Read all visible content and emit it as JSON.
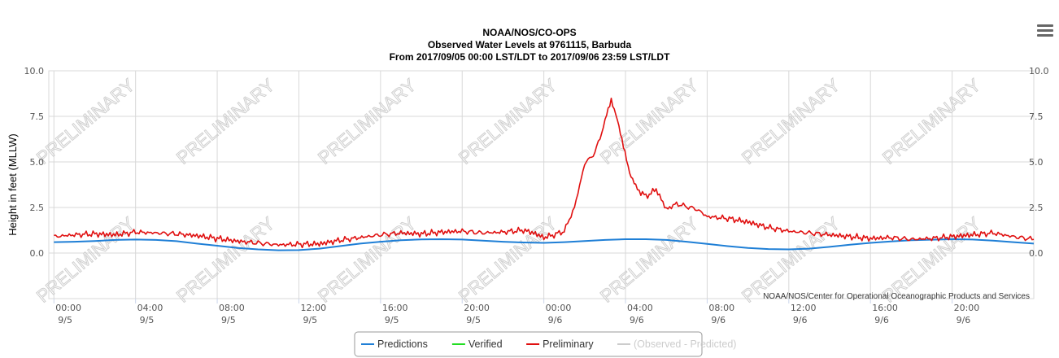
{
  "chart_data": {
    "type": "line",
    "title_lines": [
      "NOAA/NOS/CO-OPS",
      "Observed Water Levels at 9761115, Barbuda",
      "From 2017/09/05 00:00 LST/LDT to 2017/09/06 23:59 LST/LDT"
    ],
    "ylabel": "Height in feet (MLLW)",
    "xlabel": "",
    "ylim": [
      -2.5,
      10.0
    ],
    "y_ticks": [
      "10.0",
      "7.5",
      "5.0",
      "2.5",
      "0.0"
    ],
    "y_tick_values": [
      10.0,
      7.5,
      5.0,
      2.5,
      0.0
    ],
    "xlim_hours": [
      -0.25,
      48.0
    ],
    "x_ticks": [
      {
        "time": "00:00",
        "date": "9/5"
      },
      {
        "time": "04:00",
        "date": "9/5"
      },
      {
        "time": "08:00",
        "date": "9/5"
      },
      {
        "time": "12:00",
        "date": "9/5"
      },
      {
        "time": "16:00",
        "date": "9/5"
      },
      {
        "time": "20:00",
        "date": "9/5"
      },
      {
        "time": "00:00",
        "date": "9/6"
      },
      {
        "time": "04:00",
        "date": "9/6"
      },
      {
        "time": "08:00",
        "date": "9/6"
      },
      {
        "time": "12:00",
        "date": "9/6"
      },
      {
        "time": "16:00",
        "date": "9/6"
      },
      {
        "time": "20:00",
        "date": "9/6"
      }
    ],
    "grid": true,
    "watermark": "PRELIMINARY",
    "credit": "NOAA/NOS/Center for Operational Oceanographic Products and Services",
    "legend_position": "bottom-center",
    "series": [
      {
        "name": "Predictions",
        "color": "#1f7fd6",
        "x": [
          0,
          1,
          2,
          3,
          4,
          5,
          6,
          7,
          8,
          9,
          10,
          11,
          12,
          13,
          14,
          15,
          16,
          17,
          18,
          19,
          20,
          21,
          22,
          23,
          24,
          25,
          26,
          27,
          28,
          29,
          30,
          31,
          32,
          33,
          34,
          35,
          36,
          37,
          38,
          39,
          40,
          41,
          42,
          43,
          44,
          45,
          46,
          47,
          48
        ],
        "y": [
          0.6,
          0.62,
          0.66,
          0.72,
          0.74,
          0.72,
          0.65,
          0.52,
          0.4,
          0.28,
          0.2,
          0.15,
          0.16,
          0.24,
          0.38,
          0.52,
          0.62,
          0.7,
          0.75,
          0.76,
          0.74,
          0.68,
          0.62,
          0.58,
          0.56,
          0.6,
          0.66,
          0.72,
          0.76,
          0.76,
          0.72,
          0.62,
          0.5,
          0.38,
          0.28,
          0.22,
          0.2,
          0.24,
          0.34,
          0.46,
          0.56,
          0.64,
          0.7,
          0.73,
          0.76,
          0.74,
          0.68,
          0.6,
          0.52
        ]
      },
      {
        "name": "Verified",
        "color": "#22dd22",
        "x": [],
        "y": []
      },
      {
        "name": "Preliminary",
        "color": "#e01010",
        "x": [
          0,
          1,
          2,
          3,
          4,
          5,
          6,
          7,
          8,
          9,
          10,
          11,
          12,
          13,
          14,
          15,
          16,
          17,
          18,
          19,
          20,
          21,
          22,
          23,
          23.5,
          24,
          24.5,
          25,
          25.5,
          26,
          26.5,
          27,
          27.3,
          27.6,
          27.9,
          28.2,
          28.5,
          29,
          29.5,
          30,
          30.5,
          31,
          31.5,
          32,
          33,
          34,
          35,
          36,
          37,
          38,
          39,
          40,
          41,
          42,
          43,
          44,
          45,
          46,
          47,
          48
        ],
        "y": [
          0.9,
          1.0,
          1.05,
          1.0,
          1.15,
          1.1,
          1.05,
          0.95,
          0.8,
          0.65,
          0.55,
          0.45,
          0.48,
          0.5,
          0.7,
          0.85,
          1.0,
          1.1,
          1.05,
          1.15,
          1.2,
          1.1,
          1.15,
          1.25,
          1.1,
          0.85,
          1.0,
          1.2,
          2.5,
          4.9,
          5.5,
          7.2,
          8.5,
          7.3,
          5.8,
          4.5,
          3.6,
          3.1,
          3.5,
          2.4,
          2.7,
          2.55,
          2.4,
          2.0,
          1.9,
          1.7,
          1.4,
          1.2,
          1.1,
          1.0,
          0.9,
          0.8,
          0.85,
          0.75,
          0.8,
          0.9,
          1.0,
          1.1,
          0.9,
          0.75
        ]
      },
      {
        "name": "(Observed - Predicted)",
        "color": "#cccccc",
        "x": [],
        "y": []
      }
    ]
  },
  "ui": {
    "menu_icon": "hamburger-menu-icon"
  }
}
